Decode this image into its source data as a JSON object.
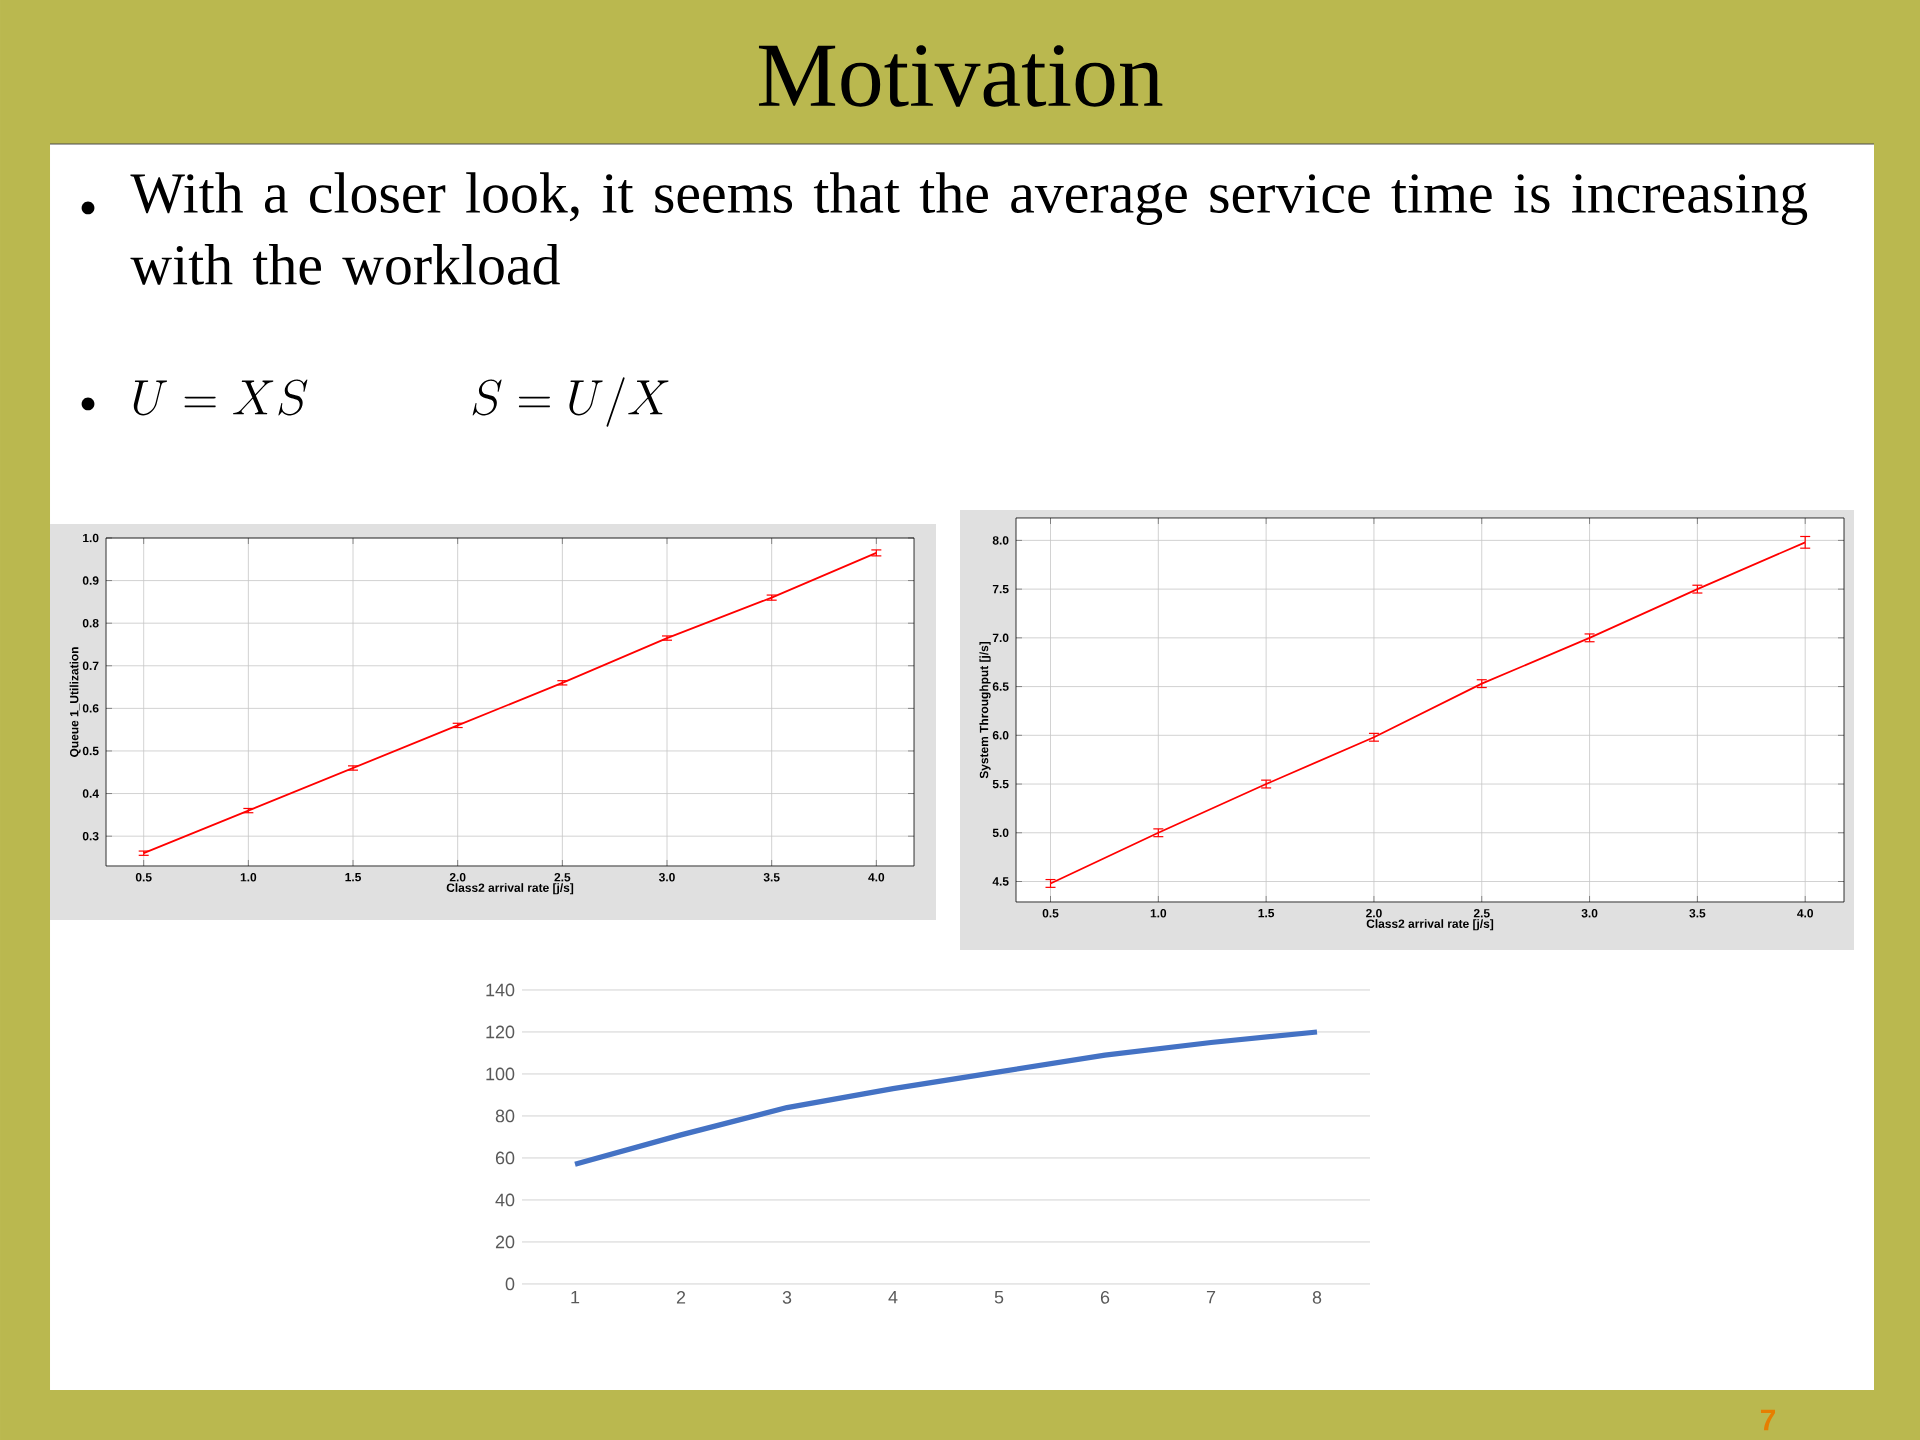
{
  "chart_data": [
    {
      "type": "line",
      "title": "Motivation",
      "annotations": [
        "With a closer look, it seems that the average service time is increasing with the workload",
        "U = XS \\qquad\\quad S = U/X",
        "7"
      ],
      "x": [
        0.5,
        1.0,
        1.5,
        2.0,
        2.5,
        3.0,
        3.5,
        4.0
      ],
      "values": [
        0.26,
        0.36,
        0.46,
        0.56,
        0.66,
        0.765,
        0.86,
        0.965
      ],
      "errors": [
        0.005,
        0.005,
        0.005,
        0.005,
        0.005,
        0.005,
        0.006,
        0.007
      ],
      "color": "#ff0000",
      "grid": true,
      "marker": "none",
      "xlabel": "Class2 arrival rate [j/s]",
      "ylabel": "Queue 1_Utilization",
      "xlim": [
        0.32,
        4.18
      ],
      "ylim": [
        0.23,
        1.0
      ],
      "xticks": [
        {
          "value": 0.5,
          "label": "0.5"
        },
        {
          "value": 1,
          "label": "1.0"
        },
        {
          "value": 1.5,
          "label": "1.5"
        },
        {
          "value": 2,
          "label": "2.0"
        },
        {
          "value": 2.5,
          "label": "2.5"
        },
        {
          "value": 3,
          "label": "3.0"
        },
        {
          "value": 3.5,
          "label": "3.5"
        },
        {
          "value": 4,
          "label": "4.0"
        }
      ],
      "yticks": [
        0.3,
        0.4,
        0.5,
        0.6,
        0.7,
        0.8,
        0.9,
        {
          "value": 1,
          "label": "1.0"
        }
      ]
    },
    {
      "type": "line",
      "x": [
        0.5,
        1.0,
        1.5,
        2.0,
        2.5,
        3.0,
        3.5,
        4.0
      ],
      "values": [
        4.48,
        5.0,
        5.5,
        5.98,
        6.53,
        7.0,
        7.5,
        7.98
      ],
      "errors": [
        0.04,
        0.04,
        0.04,
        0.04,
        0.04,
        0.04,
        0.04,
        0.06
      ],
      "color": "#ff0000",
      "grid": true,
      "marker": "none",
      "xlabel": "Class2 arrival rate [j/s]",
      "ylabel": "System Throughput [j/s]",
      "xlim": [
        0.34,
        4.18
      ],
      "ylim": [
        4.29,
        8.23
      ],
      "xticks": [
        {
          "value": 0.5,
          "label": "0.5"
        },
        {
          "value": 1,
          "label": "1.0"
        },
        {
          "value": 1.5,
          "label": "1.5"
        },
        {
          "value": 2,
          "label": "2.0"
        },
        {
          "value": 2.5,
          "label": "2.5"
        },
        {
          "value": 3,
          "label": "3.0"
        },
        {
          "value": 3.5,
          "label": "3.5"
        },
        {
          "value": 4,
          "label": "4.0"
        }
      ],
      "yticks": [
        4.5,
        {
          "value": 5,
          "label": "5.0"
        },
        5.5,
        {
          "value": 6,
          "label": "6.0"
        },
        6.5,
        {
          "value": 7,
          "label": "7.0"
        },
        7.5,
        {
          "value": 8,
          "label": "8.0"
        }
      ]
    },
    {
      "type": "line",
      "categories": [
        "1",
        "2",
        "3",
        "4",
        "5",
        "6",
        "7",
        "8"
      ],
      "values": [
        57,
        71,
        84,
        93,
        101,
        109,
        115,
        120
      ],
      "color": "#4472c4",
      "grid": "y",
      "marker": "none",
      "ylim": [
        0,
        140
      ],
      "yticks": [
        0,
        20,
        40,
        60,
        80,
        100,
        120,
        140
      ]
    }
  ]
}
